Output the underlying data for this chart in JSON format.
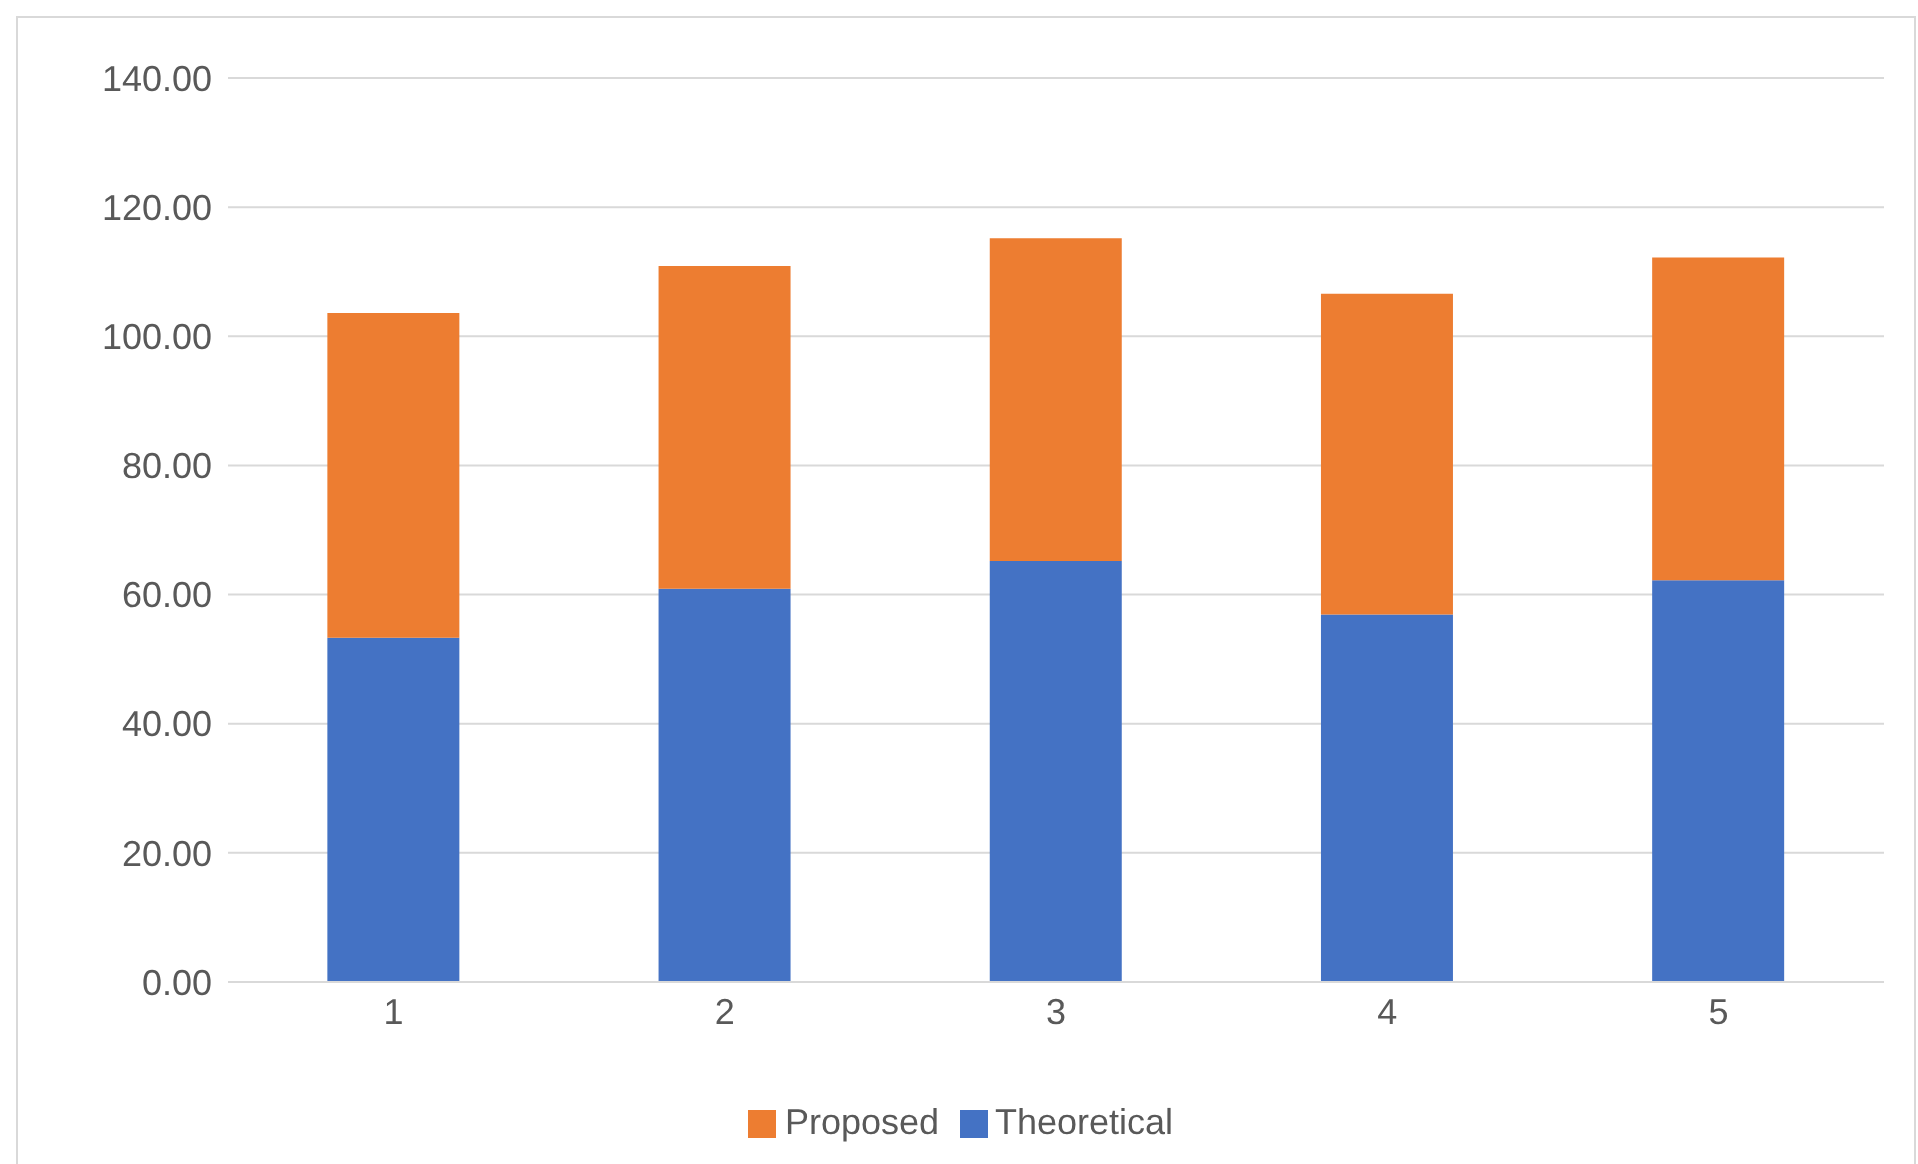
{
  "chart_data": {
    "type": "bar",
    "stacked": true,
    "categories": [
      "1",
      "2",
      "3",
      "4",
      "5"
    ],
    "series": [
      {
        "name": "Theoretical",
        "color": "#4472c4",
        "values": [
          53.3,
          60.9,
          65.2,
          56.9,
          62.2
        ]
      },
      {
        "name": "Proposed",
        "color": "#ed7d31",
        "values": [
          50.3,
          50.0,
          50.0,
          49.7,
          50.0
        ]
      }
    ],
    "ylim": [
      0,
      140
    ],
    "yticks": [
      {
        "value": 0,
        "label": "0.00"
      },
      {
        "value": 20,
        "label": "20.00"
      },
      {
        "value": 40,
        "label": "40.00"
      },
      {
        "value": 60,
        "label": "60.00"
      },
      {
        "value": 80,
        "label": "80.00"
      },
      {
        "value": 100,
        "label": "100.00"
      },
      {
        "value": 120,
        "label": "120.00"
      },
      {
        "value": 140,
        "label": "140.00"
      }
    ],
    "grid": "y",
    "legend": "bottom"
  }
}
